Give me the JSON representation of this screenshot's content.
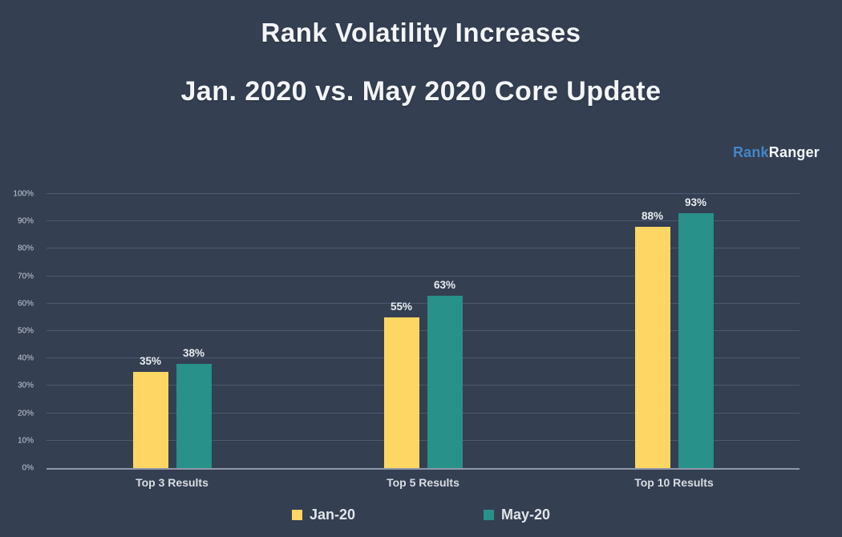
{
  "title": {
    "line1": "Rank Volatility Increases",
    "line2": "Jan. 2020 vs. May 2020 Core Update"
  },
  "logo": {
    "part1": "Rank",
    "part2": "Ranger"
  },
  "colors": {
    "background": "#343f52",
    "title_text": "#f3f5f8",
    "logo_blue": "#4386c7",
    "jan_bar": "#fdd663",
    "may_bar": "#27918a",
    "gridline": "#4d5970",
    "axis_line": "#8f98a8",
    "tick_label": "#c7cdd8",
    "value_label": "#e9ecf1",
    "category_label": "#d9dde3",
    "legend_label": "#e1e4e9"
  },
  "chart_data": {
    "type": "bar",
    "title": "Rank Volatility Increases — Jan. 2020 vs. May 2020 Core Update",
    "categories": [
      "Top 3 Results",
      "Top 5 Results",
      "Top 10 Results"
    ],
    "series": [
      {
        "name": "Jan-20",
        "color_key": "jan_bar",
        "values": [
          35,
          55,
          88
        ],
        "data_labels": [
          "35%",
          "55%",
          "88%"
        ]
      },
      {
        "name": "May-20",
        "color_key": "may_bar",
        "values": [
          38,
          63,
          93
        ],
        "data_labels": [
          "38%",
          "63%",
          "93%"
        ]
      }
    ],
    "xlabel": "",
    "ylabel": "",
    "ylim": [
      0,
      100
    ],
    "y_tick_labels": [
      "0%",
      "10%",
      "20%",
      "30%",
      "40%",
      "50%",
      "60%",
      "70%",
      "80%",
      "90%",
      "100%"
    ],
    "grid": true,
    "legend_position": "bottom"
  }
}
